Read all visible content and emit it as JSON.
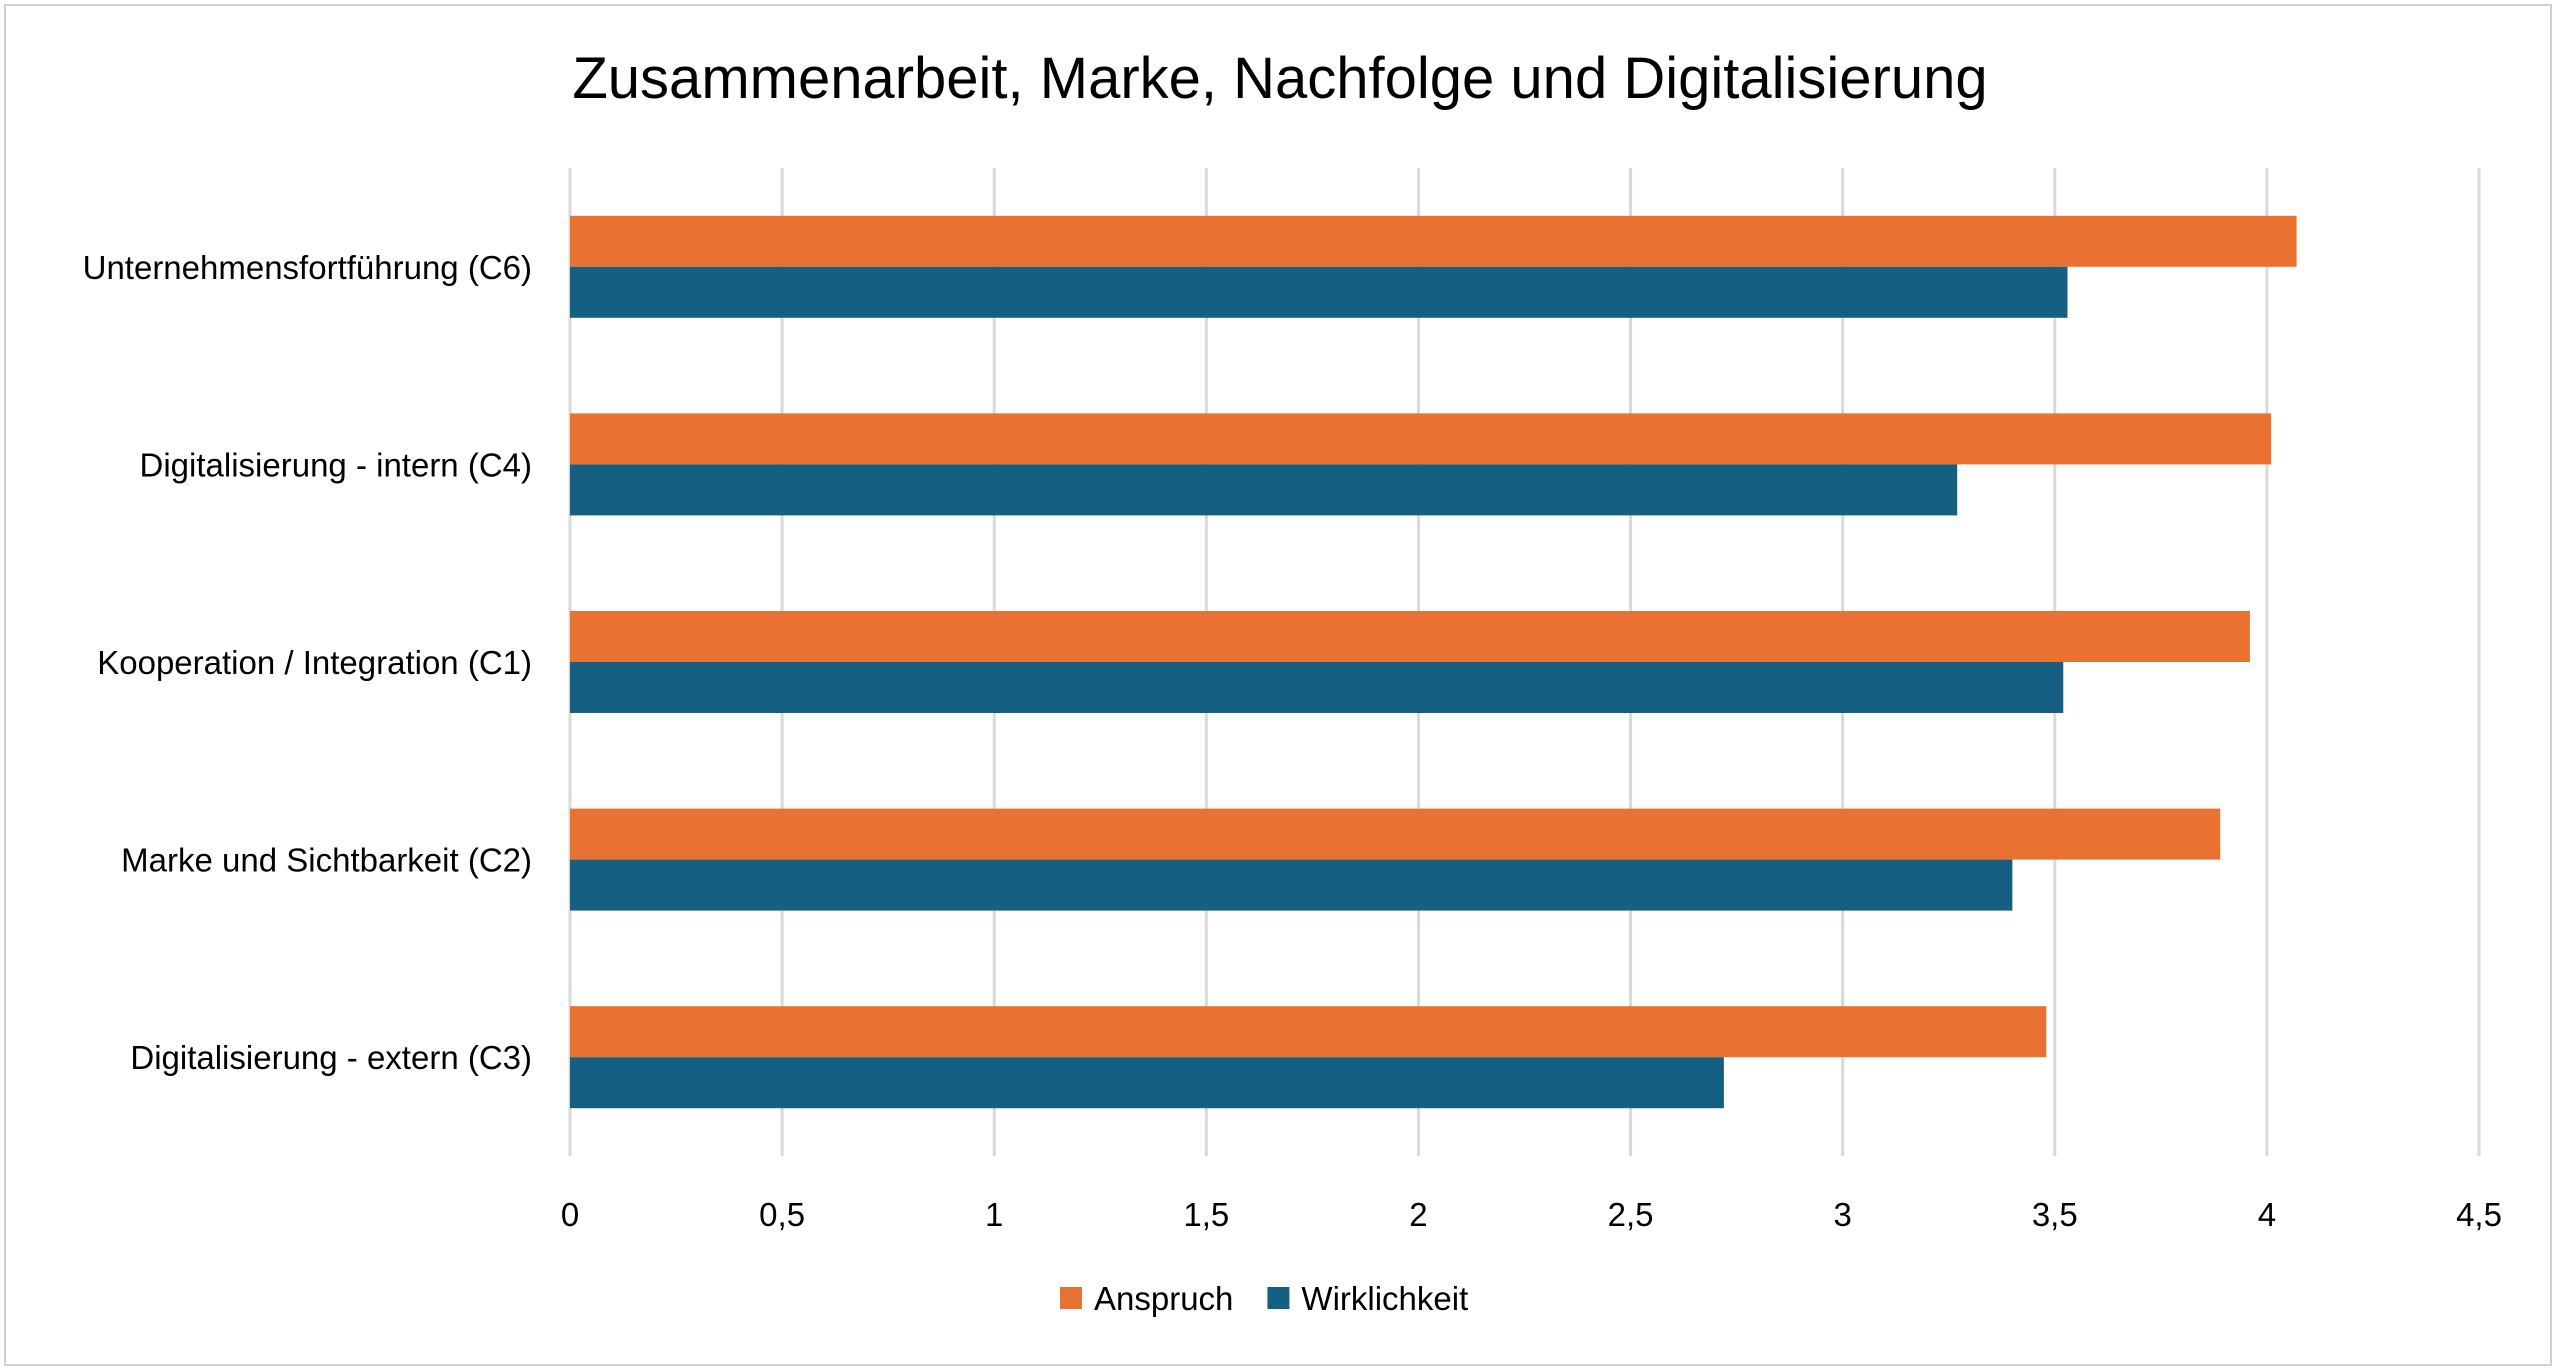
{
  "chart_data": {
    "type": "bar",
    "orientation": "horizontal",
    "title": "Zusammenarbeit, Marke, Nachfolge und Digitalisierung",
    "xlabel": "",
    "ylabel": "",
    "categories": [
      "Unternehmensfortführung (C6)",
      "Digitalisierung - intern (C4)",
      "Kooperation / Integration (C1)",
      "Marke und Sichtbarkeit (C2)",
      "Digitalisierung - extern (C3)"
    ],
    "series": [
      {
        "name": "Anspruch",
        "color": "#E97132",
        "values": [
          4.07,
          4.01,
          3.96,
          3.89,
          3.48
        ]
      },
      {
        "name": "Wirklichkeit",
        "color": "#156082",
        "values": [
          3.53,
          3.27,
          3.52,
          3.4,
          2.72
        ]
      }
    ],
    "xlim": [
      0,
      4.5
    ],
    "xticks": [
      0,
      0.5,
      1,
      1.5,
      2,
      2.5,
      3,
      3.5,
      4,
      4.5
    ],
    "xtick_labels": [
      "0",
      "0,5",
      "1",
      "1,5",
      "2",
      "2,5",
      "3",
      "3,5",
      "4",
      "4,5"
    ],
    "grid": "vertical",
    "legend_position": "bottom"
  }
}
